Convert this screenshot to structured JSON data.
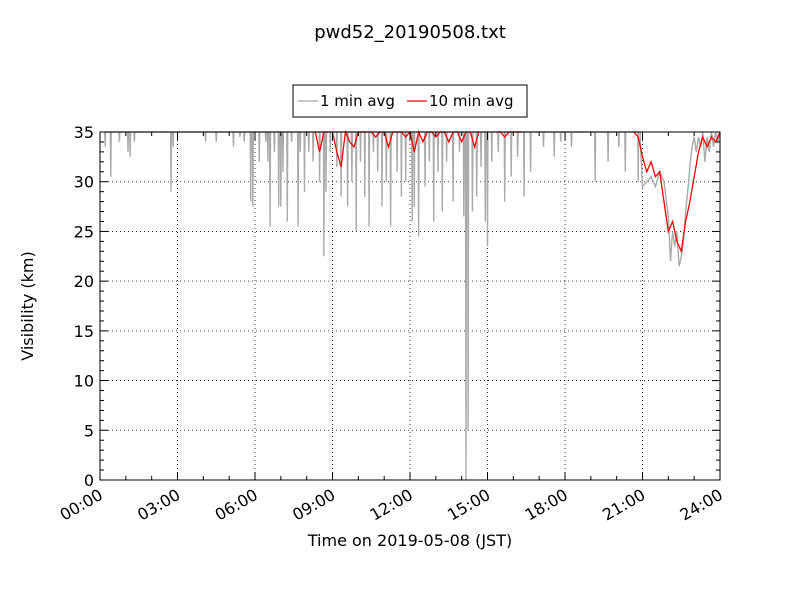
{
  "chart_data": {
    "type": "line",
    "title": "pwd52_20190508.txt",
    "xlabel": "Time on 2019-05-08 (JST)",
    "ylabel": "Visibility (km)",
    "xlim": [
      "2019-05-08 00:00",
      "2019-05-09 00:00"
    ],
    "ylim": [
      0,
      35
    ],
    "x_ticks": [
      "00:00",
      "03:00",
      "06:00",
      "09:00",
      "12:00",
      "15:00",
      "18:00",
      "21:00",
      "24:00"
    ],
    "y_ticks": [
      "0",
      "5",
      "10",
      "15",
      "20",
      "25",
      "30",
      "35"
    ],
    "grid": true,
    "legend_position": "top-center",
    "series": [
      {
        "name": "1 min avg",
        "color": "#aaaaaa",
        "baseline": 35,
        "dips": [
          [
            "00:12",
            33.5
          ],
          [
            "00:25",
            30.5
          ],
          [
            "00:45",
            34
          ],
          [
            "01:05",
            33
          ],
          [
            "01:10",
            32.5
          ],
          [
            "01:20",
            34
          ],
          [
            "02:45",
            29
          ],
          [
            "02:50",
            33.5
          ],
          [
            "04:05",
            34
          ],
          [
            "04:30",
            34
          ],
          [
            "05:10",
            33.5
          ],
          [
            "05:25",
            34.5
          ],
          [
            "05:35",
            34
          ],
          [
            "05:50",
            28
          ],
          [
            "05:55",
            27.5
          ],
          [
            "06:10",
            32
          ],
          [
            "06:25",
            34
          ],
          [
            "06:30",
            32
          ],
          [
            "06:35",
            25.5
          ],
          [
            "06:45",
            33
          ],
          [
            "06:55",
            27.5
          ],
          [
            "07:00",
            27.5
          ],
          [
            "07:05",
            31
          ],
          [
            "07:15",
            26
          ],
          [
            "07:25",
            34
          ],
          [
            "07:40",
            25.5
          ],
          [
            "07:45",
            33
          ],
          [
            "07:55",
            29
          ],
          [
            "08:05",
            33
          ],
          [
            "08:15",
            32
          ],
          [
            "08:30",
            30
          ],
          [
            "08:40",
            22.5
          ],
          [
            "08:45",
            29
          ],
          [
            "08:55",
            33
          ],
          [
            "09:10",
            31.5
          ],
          [
            "09:20",
            28.5
          ],
          [
            "09:35",
            27.5
          ],
          [
            "09:45",
            30
          ],
          [
            "09:55",
            25
          ],
          [
            "10:05",
            32
          ],
          [
            "10:15",
            28.5
          ],
          [
            "10:25",
            25.5
          ],
          [
            "10:35",
            33
          ],
          [
            "10:45",
            31
          ],
          [
            "10:55",
            27.5
          ],
          [
            "11:05",
            30
          ],
          [
            "11:15",
            25.5
          ],
          [
            "11:30",
            31
          ],
          [
            "11:40",
            28.5
          ],
          [
            "11:50",
            30
          ],
          [
            "12:05",
            26
          ],
          [
            "12:10",
            27.5
          ],
          [
            "12:20",
            24.5
          ],
          [
            "12:35",
            29.5
          ],
          [
            "12:45",
            32
          ],
          [
            "12:55",
            26
          ],
          [
            "13:05",
            31
          ],
          [
            "13:15",
            27
          ],
          [
            "13:25",
            32
          ],
          [
            "13:40",
            28
          ],
          [
            "13:55",
            33
          ],
          [
            "14:05",
            26.5
          ],
          [
            "14:10",
            0
          ],
          [
            "14:15",
            5
          ],
          [
            "14:25",
            27
          ],
          [
            "14:35",
            28.5
          ],
          [
            "14:45",
            31.5
          ],
          [
            "14:55",
            26
          ],
          [
            "15:00",
            23.5
          ],
          [
            "15:10",
            32
          ],
          [
            "15:25",
            33
          ],
          [
            "15:40",
            28
          ],
          [
            "15:55",
            30.5
          ],
          [
            "16:10",
            32.5
          ],
          [
            "16:25",
            28.5
          ],
          [
            "16:40",
            31
          ],
          [
            "17:10",
            33.5
          ],
          [
            "17:35",
            32.5
          ],
          [
            "17:50",
            34
          ],
          [
            "18:15",
            33.5
          ],
          [
            "19:10",
            30
          ],
          [
            "19:40",
            32
          ],
          [
            "20:05",
            33.5
          ],
          [
            "20:20",
            31
          ],
          [
            "20:50",
            30
          ],
          [
            "21:05",
            29
          ],
          [
            "21:20",
            32
          ],
          [
            "21:50",
            29.5
          ],
          [
            "22:05",
            30.5
          ],
          [
            "22:20",
            31.5
          ],
          [
            "22:40",
            33
          ],
          [
            "23:00",
            32.5
          ],
          [
            "23:10",
            33.5
          ],
          [
            "23:30",
            34
          ],
          [
            "23:40",
            33
          ]
        ],
        "event_window": {
          "start": "20:55",
          "end": "24:00",
          "x": [
            "20:55",
            "21:00",
            "21:10",
            "21:20",
            "21:30",
            "21:40",
            "21:50",
            "22:00",
            "22:05",
            "22:10",
            "22:15",
            "22:20",
            "22:25",
            "22:30",
            "22:35",
            "22:40",
            "22:45",
            "22:50",
            "22:55",
            "23:00",
            "23:05",
            "23:10",
            "23:15",
            "23:20",
            "23:25",
            "23:30",
            "23:35",
            "23:40",
            "23:45",
            "23:50",
            "23:55",
            "24:00"
          ],
          "y": [
            34,
            29.5,
            30,
            30.5,
            29.5,
            31,
            30,
            26.5,
            22,
            25,
            23.5,
            25,
            21.5,
            22.5,
            24,
            27,
            29,
            31.5,
            33.5,
            34.5,
            33,
            34.5,
            33.5,
            35,
            32,
            34.5,
            33,
            35,
            33.5,
            35,
            34,
            35
          ]
        }
      },
      {
        "name": "10 min avg",
        "color": "#ff0000",
        "x": [
          "08:20",
          "08:30",
          "08:40",
          "08:50",
          "09:00",
          "09:10",
          "09:20",
          "09:30",
          "09:40",
          "09:50",
          "10:00",
          "10:10",
          "10:20",
          "10:30",
          "10:40",
          "10:50",
          "11:00",
          "11:10",
          "11:20",
          "11:30",
          "11:40",
          "11:50",
          "12:00",
          "12:10",
          "12:20",
          "12:30",
          "12:40",
          "12:50",
          "13:00",
          "13:10",
          "13:20",
          "13:30",
          "13:40",
          "13:50",
          "14:00",
          "14:10",
          "14:20",
          "14:30",
          "14:40",
          "15:20",
          "15:30",
          "15:40",
          "15:50",
          "16:00",
          "16:10",
          "16:20",
          "20:40",
          "20:50",
          "21:00",
          "21:10",
          "21:20",
          "21:30",
          "21:40",
          "21:50",
          "22:00",
          "22:10",
          "22:20",
          "22:30",
          "22:40",
          "22:50",
          "23:00",
          "23:10",
          "23:20",
          "23:30",
          "23:40",
          "23:50",
          "24:00"
        ],
        "y": [
          35,
          33,
          35,
          35,
          35,
          33,
          31.5,
          35,
          34,
          33.5,
          35,
          35,
          35,
          35,
          34.5,
          35,
          35,
          33.5,
          35,
          35,
          35,
          34.5,
          35,
          33,
          35,
          34,
          35,
          35,
          34.5,
          35,
          35,
          34,
          35,
          35,
          34,
          35,
          35,
          33.5,
          35,
          35,
          35,
          34.5,
          35,
          35,
          35,
          35,
          35,
          34.5,
          32.5,
          31,
          32,
          30.5,
          31,
          28,
          25,
          26,
          24,
          23,
          26,
          28,
          30.5,
          33,
          34.5,
          33.5,
          34.5,
          34,
          35
        ]
      }
    ]
  }
}
